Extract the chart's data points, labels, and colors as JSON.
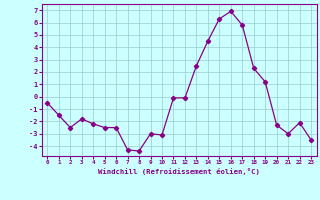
{
  "x": [
    0,
    1,
    2,
    3,
    4,
    5,
    6,
    7,
    8,
    9,
    10,
    11,
    12,
    13,
    14,
    15,
    16,
    17,
    18,
    19,
    20,
    21,
    22,
    23
  ],
  "y": [
    -0.5,
    -1.5,
    -2.5,
    -1.8,
    -2.2,
    -2.5,
    -2.5,
    -4.3,
    -4.4,
    -3.0,
    -3.1,
    -0.1,
    -0.1,
    2.5,
    4.5,
    6.3,
    6.9,
    5.8,
    2.3,
    1.2,
    -2.3,
    -3.0,
    -2.1,
    -3.5
  ],
  "line_color": "#880088",
  "marker": "D",
  "marker_size": 2.2,
  "bg_color": "#ccffff",
  "grid_color": "#99cccc",
  "xlabel": "Windchill (Refroidissement éolien,°C)",
  "tick_color": "#880088",
  "ylim": [
    -4.8,
    7.5
  ],
  "yticks": [
    -4,
    -3,
    -2,
    -1,
    0,
    1,
    2,
    3,
    4,
    5,
    6,
    7
  ],
  "xlim": [
    -0.5,
    23.5
  ],
  "xticks": [
    0,
    1,
    2,
    3,
    4,
    5,
    6,
    7,
    8,
    9,
    10,
    11,
    12,
    13,
    14,
    15,
    16,
    17,
    18,
    19,
    20,
    21,
    22,
    23
  ]
}
